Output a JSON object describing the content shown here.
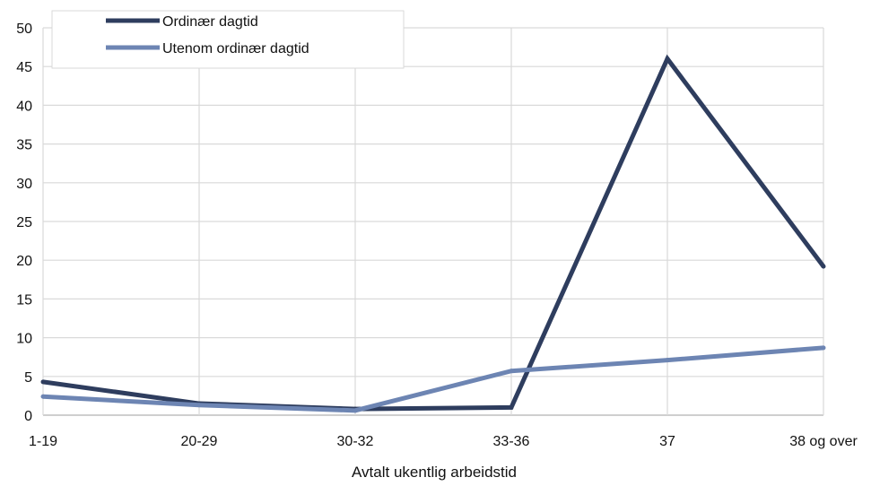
{
  "chart_data": {
    "type": "line",
    "categories": [
      "1-19",
      "20-29",
      "30-32",
      "33-36",
      "37",
      "38 og over"
    ],
    "series": [
      {
        "name": "Ordinær dagtid",
        "color": "#2e3d5e",
        "values": [
          4.3,
          1.5,
          0.8,
          1.0,
          46.0,
          19.2
        ]
      },
      {
        "name": "Utenom ordinær dagtid",
        "color": "#6d85b3",
        "values": [
          2.4,
          1.3,
          0.6,
          5.7,
          7.1,
          8.7
        ]
      }
    ],
    "xlabel": "Avtalt ukentlig arbeidstid",
    "ylabel": "",
    "ylim": [
      0,
      50
    ],
    "yticks": [
      0,
      5,
      10,
      15,
      20,
      25,
      30,
      35,
      40,
      45,
      50
    ],
    "grid": true,
    "legend_position": "top-left"
  }
}
